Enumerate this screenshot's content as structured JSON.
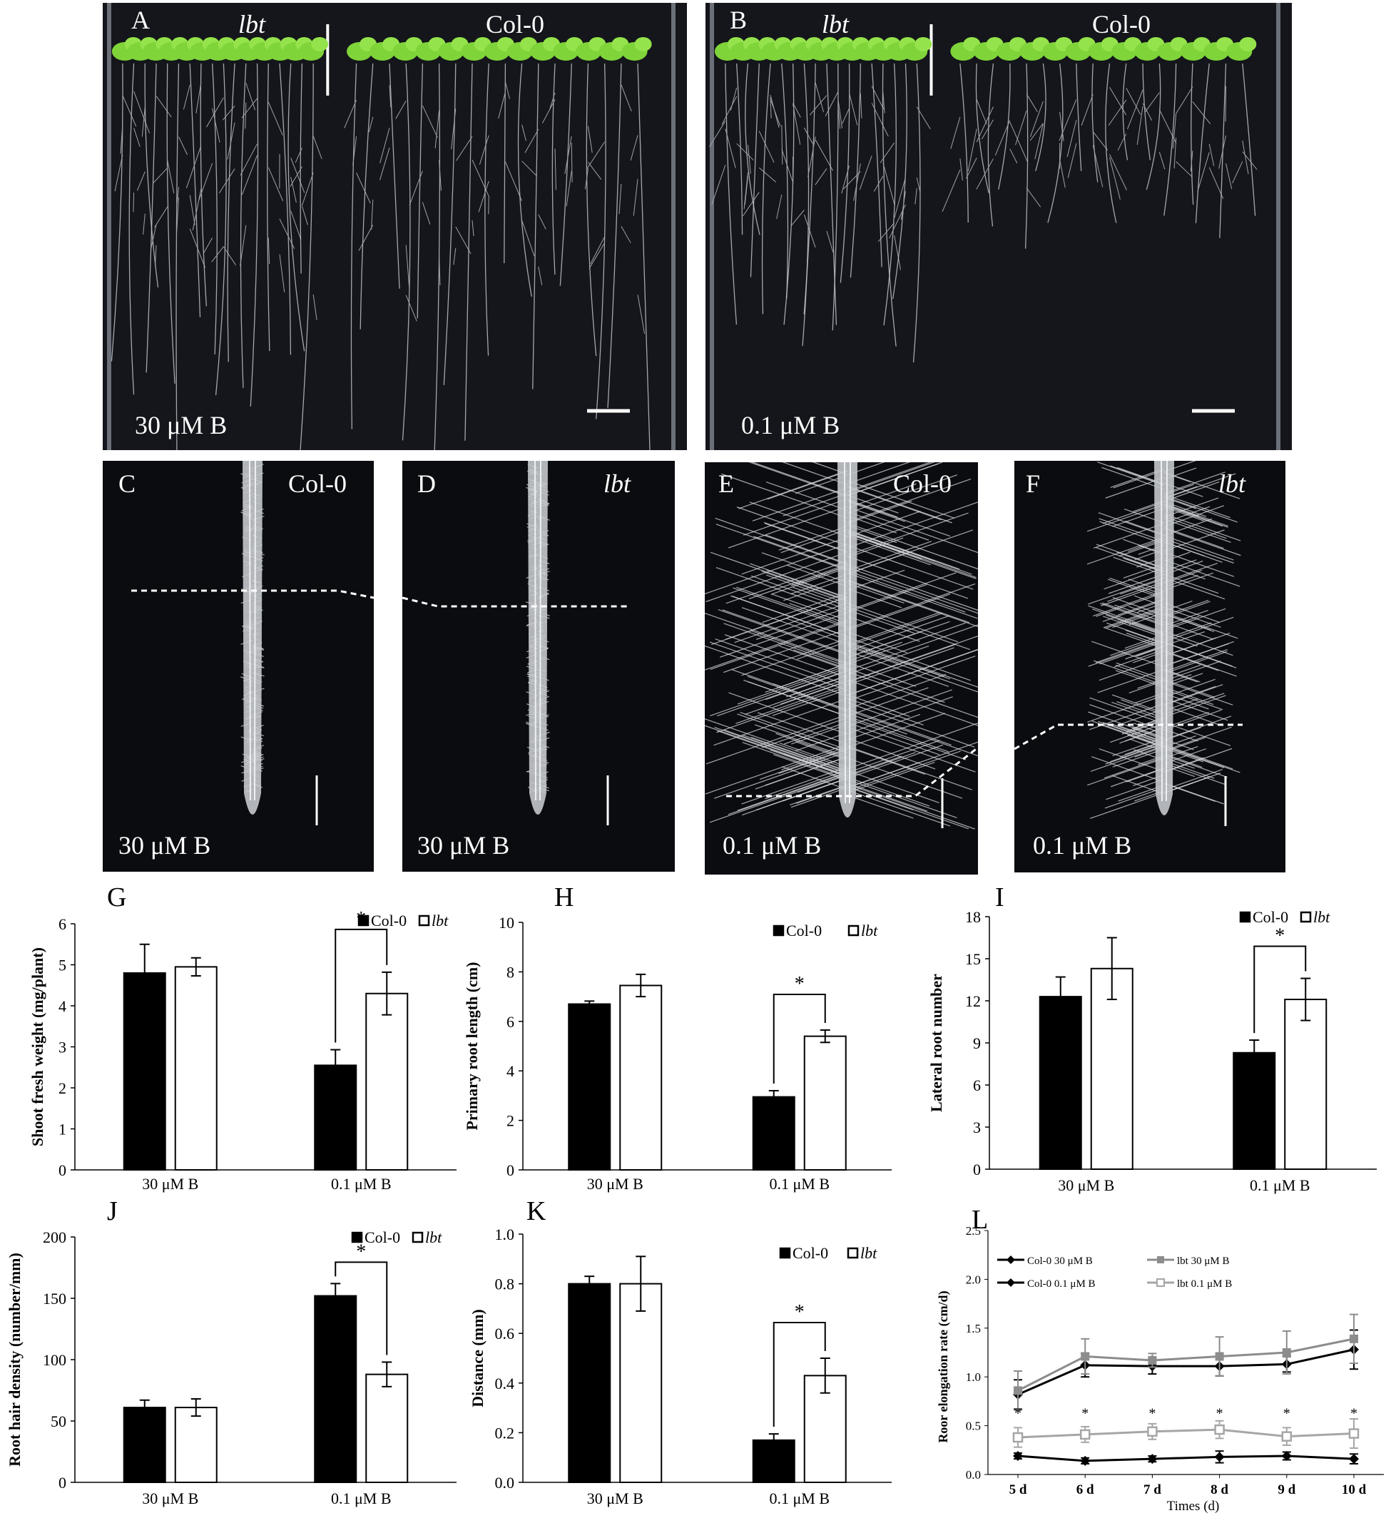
{
  "photos": {
    "A": {
      "letter": "A",
      "genotype_left": "lbt",
      "genotype_right": "Col-0",
      "condition": "30 μM B"
    },
    "B": {
      "letter": "B",
      "genotype_left": "lbt",
      "genotype_right": "Col-0",
      "condition": "0.1 μM B"
    },
    "C": {
      "letter": "C",
      "genotype": "Col-0",
      "condition": "30 μM B"
    },
    "D": {
      "letter": "D",
      "genotype": "lbt",
      "condition": "30 μM B"
    },
    "E": {
      "letter": "E",
      "genotype": "Col-0",
      "condition": "0.1 μM B"
    },
    "F": {
      "letter": "F",
      "genotype": "lbt",
      "condition": "0.1 μM B"
    }
  },
  "chart_data": [
    {
      "panel": "G",
      "type": "bar",
      "ylabel": "Shoot fresh weight (mg/plant)",
      "categories": [
        "30 μM B",
        "0.1 μM B"
      ],
      "ylim": [
        0,
        6
      ],
      "yticks": [
        0,
        1,
        2,
        3,
        4,
        5,
        6
      ],
      "series": [
        {
          "name": "Col-0",
          "color": "#000000",
          "values": [
            4.8,
            2.55
          ],
          "errors": [
            0.7,
            0.38
          ]
        },
        {
          "name": "lbt",
          "color": "#ffffff",
          "values": [
            4.95,
            4.3
          ],
          "errors": [
            0.22,
            0.52
          ]
        }
      ],
      "significance": {
        "category": 1,
        "label": "*"
      },
      "legend": "top-right"
    },
    {
      "panel": "H",
      "type": "bar",
      "ylabel": "Primary root length (cm)",
      "categories": [
        "30 μM B",
        "0.1 μM B"
      ],
      "ylim": [
        0,
        10
      ],
      "yticks": [
        0,
        2,
        4,
        6,
        8,
        10
      ],
      "series": [
        {
          "name": "Col-0",
          "color": "#000000",
          "values": [
            6.7,
            2.95
          ],
          "errors": [
            0.12,
            0.25
          ]
        },
        {
          "name": "lbt",
          "color": "#ffffff",
          "values": [
            7.45,
            5.4
          ],
          "errors": [
            0.45,
            0.25
          ]
        }
      ],
      "significance": {
        "category": 1,
        "label": "*"
      },
      "legend": "top-right"
    },
    {
      "panel": "I",
      "type": "bar",
      "ylabel": "Lateral root number",
      "categories": [
        "30 μM B",
        "0.1 μM B"
      ],
      "ylim": [
        0,
        18
      ],
      "yticks": [
        0,
        3,
        6,
        9,
        12,
        15,
        18
      ],
      "series": [
        {
          "name": "Col-0",
          "color": "#000000",
          "values": [
            12.3,
            8.3
          ],
          "errors": [
            1.4,
            0.9
          ]
        },
        {
          "name": "lbt",
          "color": "#ffffff",
          "values": [
            14.3,
            12.1
          ],
          "errors": [
            2.2,
            1.5
          ]
        }
      ],
      "significance": {
        "category": 1,
        "label": "*"
      },
      "legend": "top-right"
    },
    {
      "panel": "J",
      "type": "bar",
      "ylabel": "Root hair density (number/mm)",
      "categories": [
        "30 μM B",
        "0.1 μM B"
      ],
      "ylim": [
        0,
        200
      ],
      "yticks": [
        0,
        50,
        100,
        150,
        200
      ],
      "series": [
        {
          "name": "Col-0",
          "color": "#000000",
          "values": [
            61,
            152
          ],
          "errors": [
            6,
            10
          ]
        },
        {
          "name": "lbt",
          "color": "#ffffff",
          "values": [
            61,
            88
          ],
          "errors": [
            7,
            10
          ]
        }
      ],
      "significance": {
        "category": 1,
        "label": "*"
      },
      "legend": "top-right"
    },
    {
      "panel": "K",
      "type": "bar",
      "ylabel": "Distance (mm)",
      "categories": [
        "30 μM B",
        "0.1 μM B"
      ],
      "ylim": [
        0,
        1.0
      ],
      "yticks": [
        "0.0",
        "0.2",
        "0.4",
        "0.6",
        "0.8",
        "1.0"
      ],
      "series": [
        {
          "name": "Col-0",
          "color": "#000000",
          "values": [
            0.8,
            0.17
          ],
          "errors": [
            0.03,
            0.025
          ]
        },
        {
          "name": "lbt",
          "color": "#ffffff",
          "values": [
            0.8,
            0.43
          ],
          "errors": [
            0.11,
            0.07
          ]
        }
      ],
      "significance": {
        "category": 1,
        "label": "*"
      },
      "legend": "top-right"
    },
    {
      "panel": "L",
      "type": "line",
      "ylabel": "Roor elongation rate (cm/d)",
      "xlabel": "Times (d)",
      "categories": [
        "5 d",
        "6 d",
        "7 d",
        "8 d",
        "9 d",
        "10 d"
      ],
      "ylim": [
        0,
        2.5
      ],
      "yticks": [
        "0.0",
        "0.5",
        "1.0",
        "1.5",
        "2.0",
        "2.5"
      ],
      "series": [
        {
          "name": "Col-0 30 μM B",
          "color": "#000000",
          "marker": "diamond",
          "values": [
            0.82,
            1.12,
            1.11,
            1.11,
            1.13,
            1.28
          ],
          "errors": [
            0.15,
            0.12,
            0.08,
            0.1,
            0.08,
            0.2
          ]
        },
        {
          "name": "lbt 30 μM B",
          "color": "#8c8c8c",
          "marker": "square",
          "values": [
            0.86,
            1.21,
            1.17,
            1.21,
            1.25,
            1.39
          ],
          "errors": [
            0.2,
            0.18,
            0.07,
            0.2,
            0.22,
            0.25
          ]
        },
        {
          "name": "Col-0 0.1 μM B",
          "color": "#000000",
          "marker": "diamond",
          "values": [
            0.19,
            0.14,
            0.16,
            0.18,
            0.19,
            0.16
          ],
          "errors": [
            0.03,
            0.03,
            0.03,
            0.06,
            0.04,
            0.05
          ]
        },
        {
          "name": "lbt 0.1 μM B",
          "color": "#a6a6a6",
          "marker": "open-square",
          "values": [
            0.38,
            0.41,
            0.44,
            0.46,
            0.39,
            0.42
          ],
          "errors": [
            0.1,
            0.08,
            0.08,
            0.09,
            0.09,
            0.15
          ]
        }
      ],
      "significance": {
        "categories": [
          0,
          1,
          2,
          3,
          4,
          5
        ],
        "label": "*"
      },
      "legend": "top"
    }
  ]
}
